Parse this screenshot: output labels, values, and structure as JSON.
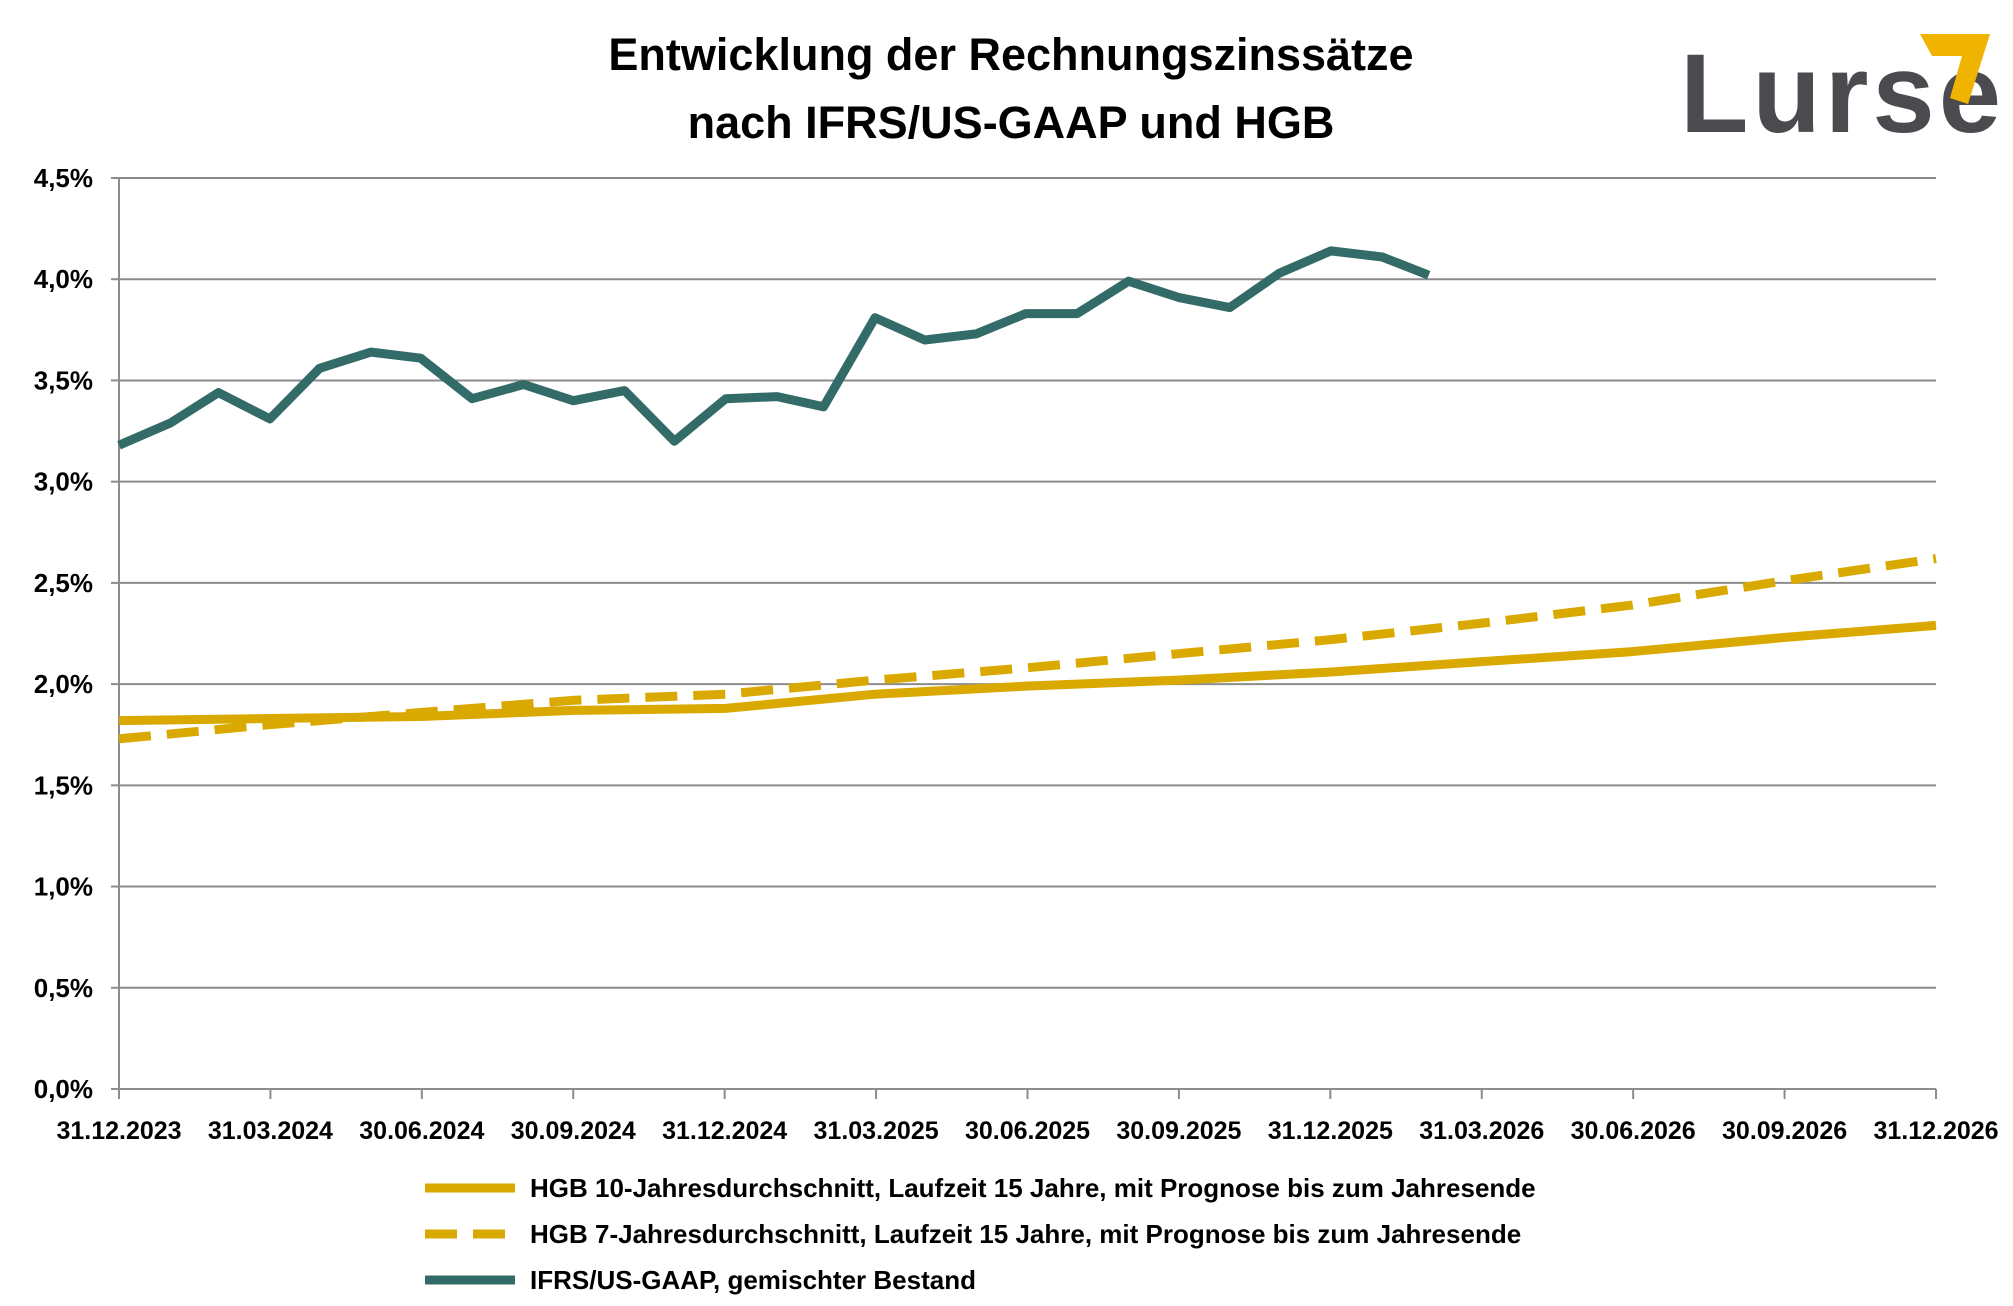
{
  "logo": {
    "text": "Lurse",
    "text_color": "#4a4a4f",
    "accent_color": "#f0b400"
  },
  "chart_data": {
    "type": "line",
    "title": [
      "Entwicklung der Rechnungszinssätze",
      "nach IFRS/US-GAAP und HGB"
    ],
    "xlabel": "",
    "ylabel": "",
    "ylim": [
      0,
      4.5
    ],
    "xlim": [
      "2023-12-31",
      "2026-12-31"
    ],
    "grid": "horizontal",
    "legend_position": "bottom",
    "y_ticks": [
      "0,0%",
      "0,5%",
      "1,0%",
      "1,5%",
      "2,0%",
      "2,5%",
      "3,0%",
      "3,5%",
      "4,0%",
      "4,5%"
    ],
    "x_ticks": [
      "31.12.2023",
      "31.03.2024",
      "30.06.2024",
      "30.09.2024",
      "31.12.2024",
      "31.03.2025",
      "30.06.2025",
      "30.09.2025",
      "31.12.2025",
      "31.03.2026",
      "30.06.2026",
      "30.09.2026",
      "31.12.2026"
    ],
    "series": [
      {
        "name": "HGB 10-Jahresdurchschnitt, Laufzeit 15 Jahre, mit Prognose bis zum Jahresende",
        "color": "#d9a900",
        "style": "solid",
        "x": [
          "2023-12-31",
          "2024-03-31",
          "2024-06-30",
          "2024-09-30",
          "2024-12-31",
          "2025-03-31",
          "2025-06-30",
          "2025-09-30",
          "2025-12-31",
          "2026-03-31",
          "2026-06-30",
          "2026-09-30",
          "2026-12-31"
        ],
        "values": [
          1.82,
          1.83,
          1.84,
          1.87,
          1.88,
          1.95,
          1.99,
          2.02,
          2.06,
          2.11,
          2.16,
          2.23,
          2.29
        ]
      },
      {
        "name": "HGB 7-Jahresdurchschnitt, Laufzeit 15 Jahre, mit Prognose bis zum Jahresende",
        "color": "#d9a900",
        "style": "dashed",
        "x": [
          "2023-12-31",
          "2024-03-31",
          "2024-06-30",
          "2024-09-30",
          "2024-12-31",
          "2025-03-31",
          "2025-06-30",
          "2025-09-30",
          "2025-12-31",
          "2026-03-31",
          "2026-06-30",
          "2026-09-30",
          "2026-12-31"
        ],
        "values": [
          1.73,
          1.8,
          1.86,
          1.92,
          1.95,
          2.02,
          2.08,
          2.15,
          2.22,
          2.3,
          2.39,
          2.51,
          2.62
        ]
      },
      {
        "name": "IFRS/US-GAAP, gemischter Bestand",
        "color": "#336b68",
        "style": "solid",
        "x": [
          "2023-12-31",
          "2024-01-31",
          "2024-02-29",
          "2024-03-31",
          "2024-04-30",
          "2024-05-31",
          "2024-06-30",
          "2024-07-31",
          "2024-08-31",
          "2024-09-30",
          "2024-10-31",
          "2024-11-30",
          "2024-12-31",
          "2025-01-31",
          "2025-02-28",
          "2025-03-31",
          "2025-04-30",
          "2025-05-31",
          "2025-06-30",
          "2025-07-31",
          "2025-08-31",
          "2025-09-30",
          "2025-10-31",
          "2025-11-30",
          "2025-12-31",
          "2026-01-31",
          "2026-02-28"
        ],
        "values": [
          3.18,
          3.29,
          3.44,
          3.31,
          3.56,
          3.64,
          3.61,
          3.41,
          3.48,
          3.4,
          3.45,
          3.2,
          3.41,
          3.42,
          3.37,
          3.81,
          3.7,
          3.73,
          3.83,
          3.83,
          3.99,
          3.91,
          3.86,
          4.03,
          4.14,
          4.11,
          4.02
        ]
      }
    ]
  }
}
